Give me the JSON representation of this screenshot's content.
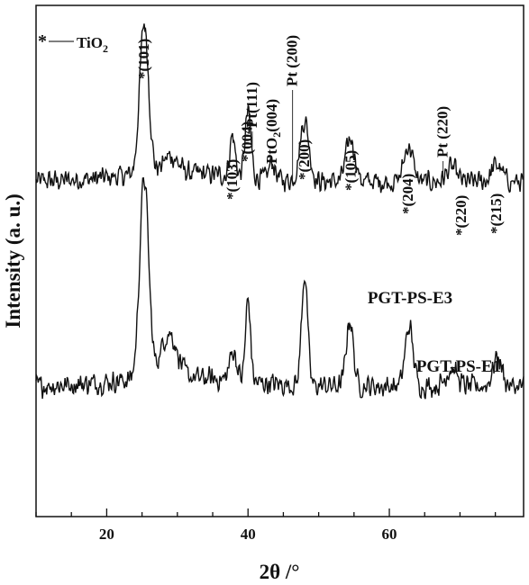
{
  "chart_data": {
    "type": "line",
    "xlabel": "2θ /°",
    "ylabel": "Intensity (a. u.)",
    "xlim": [
      10,
      79
    ],
    "x_ticks": [
      20,
      40,
      60
    ],
    "y_ticks": "none",
    "legend": {
      "symbol": "*",
      "label": "TiO",
      "subscript": "2",
      "position": "top-left"
    },
    "series": [
      {
        "name": "PGT-PS-E3",
        "baseline": 0.55,
        "noise": 0.09,
        "peaks": [
          {
            "x": 25.3,
            "height": 1.05,
            "width": 0.9
          },
          {
            "x": 29.0,
            "height": 0.12,
            "width": 1.5
          },
          {
            "x": 37.8,
            "height": 0.28,
            "width": 0.55
          },
          {
            "x": 40.0,
            "height": 0.45,
            "width": 0.6
          },
          {
            "x": 43.4,
            "height": 0.12,
            "width": 0.6
          },
          {
            "x": 48.0,
            "height": 0.42,
            "width": 0.9
          },
          {
            "x": 54.5,
            "height": 0.3,
            "width": 0.9
          },
          {
            "x": 62.7,
            "height": 0.25,
            "width": 0.9
          },
          {
            "x": 68.8,
            "height": 0.1,
            "width": 1.0
          },
          {
            "x": 75.2,
            "height": 0.12,
            "width": 1.0
          }
        ]
      },
      {
        "name": "PGT-PS-E1",
        "baseline": 0.55,
        "noise": 0.09,
        "peaks": [
          {
            "x": 25.3,
            "height": 1.35,
            "width": 0.9
          },
          {
            "x": 28.8,
            "height": 0.3,
            "width": 1.6
          },
          {
            "x": 37.9,
            "height": 0.2,
            "width": 0.7
          },
          {
            "x": 40.0,
            "height": 0.55,
            "width": 0.5
          },
          {
            "x": 48.0,
            "height": 0.75,
            "width": 0.6
          },
          {
            "x": 54.4,
            "height": 0.45,
            "width": 0.7
          },
          {
            "x": 62.8,
            "height": 0.4,
            "width": 0.8
          },
          {
            "x": 68.8,
            "height": 0.12,
            "width": 1.1
          },
          {
            "x": 75.3,
            "height": 0.2,
            "width": 0.9
          }
        ]
      }
    ],
    "annotations": [
      {
        "text": "*(101)",
        "x": 25.3,
        "star": true
      },
      {
        "text": "*(103)",
        "x": 37.8,
        "star": true
      },
      {
        "text": "*(004)",
        "x": 39.9,
        "star": true
      },
      {
        "text": "Pt(111)",
        "x": 40.6,
        "star": false
      },
      {
        "text": "PtO2(004)",
        "x": 43.4,
        "star": false
      },
      {
        "text": "Pt (200)",
        "x": 46.3,
        "star": false
      },
      {
        "text": "*(200)",
        "x": 48.0,
        "star": true
      },
      {
        "text": "*(105)",
        "x": 54.6,
        "star": true
      },
      {
        "text": "*(204)",
        "x": 62.7,
        "star": true
      },
      {
        "text": "Pt (220)",
        "x": 67.6,
        "star": false
      },
      {
        "text": "*(220)",
        "x": 70.2,
        "star": true
      },
      {
        "text": "*(215)",
        "x": 75.2,
        "star": true
      }
    ]
  }
}
